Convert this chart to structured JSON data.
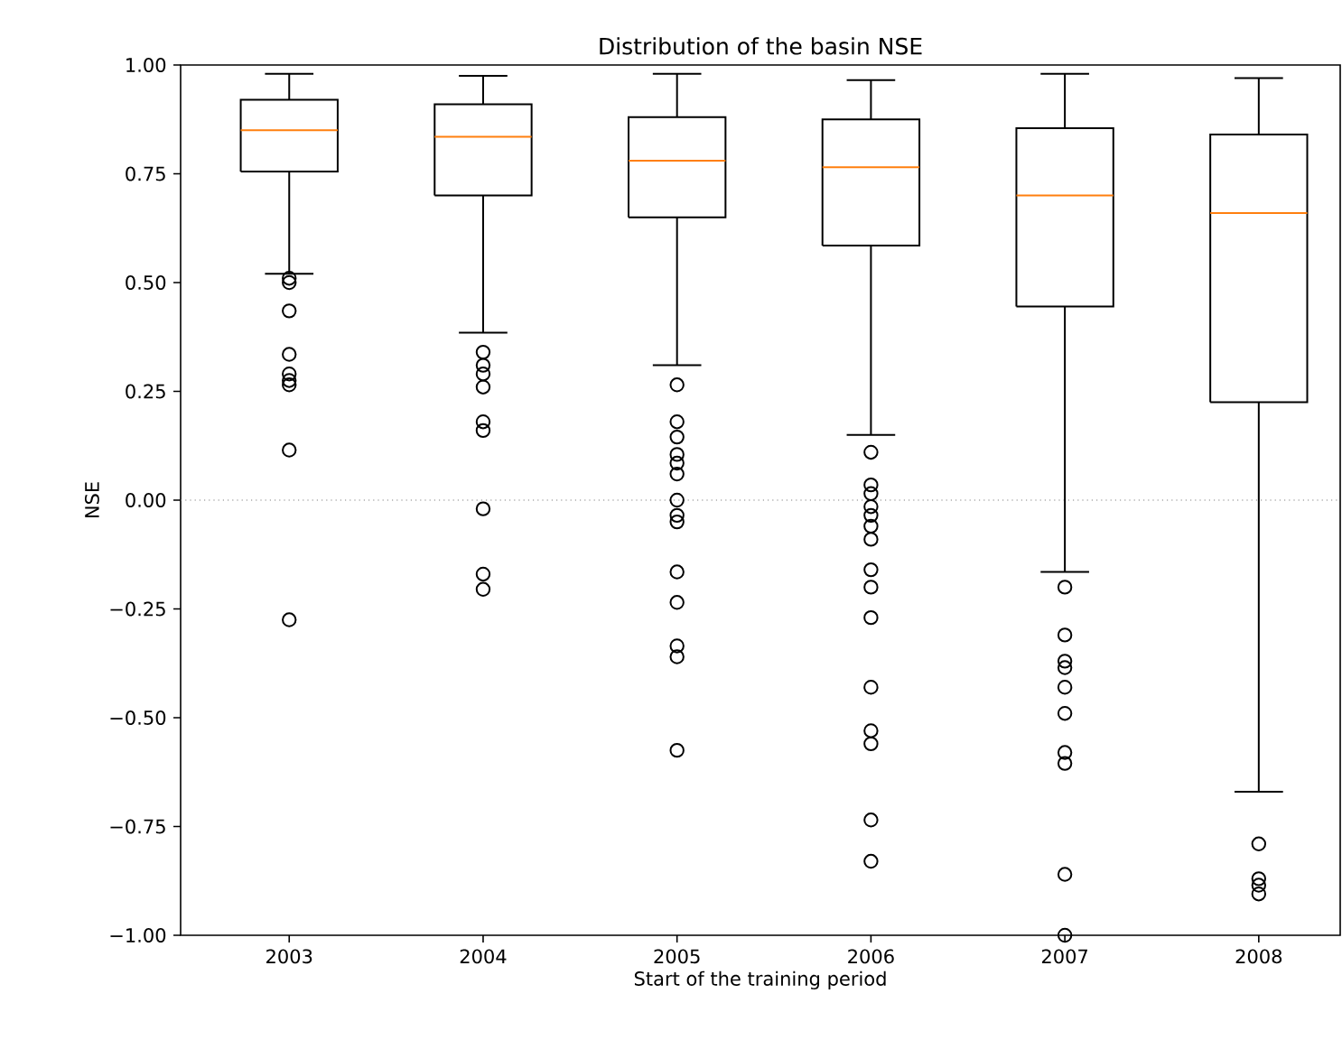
{
  "chart_data": {
    "type": "box",
    "title": "Distribution of the basin NSE",
    "xlabel": "Start of the training period",
    "ylabel": "NSE",
    "categories": [
      "2003",
      "2004",
      "2005",
      "2006",
      "2007",
      "2008"
    ],
    "boxes": [
      {
        "low": 0.52,
        "q1": 0.755,
        "median": 0.85,
        "q3": 0.92,
        "high": 0.98,
        "outliers": [
          0.51,
          0.5,
          0.435,
          0.335,
          0.29,
          0.275,
          0.265,
          0.115,
          -0.275
        ]
      },
      {
        "low": 0.385,
        "q1": 0.7,
        "median": 0.835,
        "q3": 0.91,
        "high": 0.975,
        "outliers": [
          0.34,
          0.31,
          0.29,
          0.26,
          0.18,
          0.16,
          -0.02,
          -0.17,
          -0.205
        ]
      },
      {
        "low": 0.31,
        "q1": 0.65,
        "median": 0.78,
        "q3": 0.88,
        "high": 0.98,
        "outliers": [
          0.265,
          0.18,
          0.145,
          0.105,
          0.085,
          0.06,
          0.0,
          -0.035,
          -0.05,
          -0.165,
          -0.235,
          -0.335,
          -0.36,
          -0.575
        ]
      },
      {
        "low": 0.15,
        "q1": 0.585,
        "median": 0.765,
        "q3": 0.875,
        "high": 0.965,
        "outliers": [
          0.11,
          0.035,
          0.015,
          -0.015,
          -0.035,
          -0.06,
          -0.09,
          -0.16,
          -0.2,
          -0.27,
          -0.43,
          -0.53,
          -0.56,
          -0.735,
          -0.83
        ]
      },
      {
        "low": -0.165,
        "q1": 0.445,
        "median": 0.7,
        "q3": 0.855,
        "high": 0.98,
        "outliers": [
          -0.2,
          -0.31,
          -0.37,
          -0.385,
          -0.43,
          -0.49,
          -0.58,
          -0.605,
          -0.86,
          -1.0
        ]
      },
      {
        "low": -0.67,
        "q1": 0.225,
        "median": 0.66,
        "q3": 0.84,
        "high": 0.97,
        "outliers": [
          -0.79,
          -0.87,
          -0.885,
          -0.905
        ]
      }
    ],
    "color": "#000000",
    "ylim": [
      -1.0,
      1.0
    ],
    "yticks": [
      {
        "value": -1.0,
        "label": "−1.00"
      },
      {
        "value": -0.75,
        "label": "−0.75"
      },
      {
        "value": -0.5,
        "label": "−0.50"
      },
      {
        "value": -0.25,
        "label": "−0.25"
      },
      {
        "value": 0.0,
        "label": "0.00"
      },
      {
        "value": 0.25,
        "label": "0.25"
      },
      {
        "value": 0.5,
        "label": "0.50"
      },
      {
        "value": 0.75,
        "label": "0.75"
      },
      {
        "value": 1.0,
        "label": "1.00"
      }
    ],
    "ref_lines": [
      {
        "axis": "y",
        "value": 0.0,
        "color": "#808080",
        "line_style": "dotted"
      }
    ]
  }
}
